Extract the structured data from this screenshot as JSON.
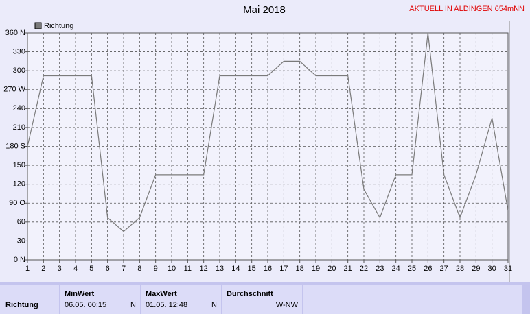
{
  "header": {
    "status": "AKTUELL IN ALDINGEN 654mNN"
  },
  "chart_data": {
    "type": "line",
    "title": "Mai 2018",
    "x": [
      1,
      2,
      3,
      4,
      5,
      6,
      7,
      8,
      9,
      10,
      11,
      12,
      13,
      14,
      15,
      16,
      17,
      18,
      19,
      20,
      21,
      22,
      23,
      24,
      25,
      26,
      27,
      28,
      29,
      30,
      31
    ],
    "series": [
      {
        "name": "Richtung",
        "color": "#7a7a7a",
        "values": [
          180,
          292,
          292,
          292,
          292,
          67,
          45,
          67,
          135,
          135,
          135,
          135,
          292,
          292,
          292,
          292,
          315,
          315,
          292,
          292,
          292,
          112,
          67,
          135,
          135,
          360,
          135,
          67,
          135,
          225,
          78
        ]
      }
    ],
    "xlim": [
      1,
      31
    ],
    "xticks": [
      1,
      2,
      3,
      4,
      5,
      6,
      7,
      8,
      9,
      10,
      11,
      12,
      13,
      14,
      15,
      16,
      17,
      18,
      19,
      20,
      21,
      22,
      23,
      24,
      25,
      26,
      27,
      28,
      29,
      30,
      31
    ],
    "ylim": [
      0,
      360
    ],
    "yticks": [
      {
        "value": 0,
        "label": "0 N"
      },
      30,
      60,
      {
        "value": 90,
        "label": "90 O"
      },
      120,
      150,
      {
        "value": 180,
        "label": "180 S"
      },
      210,
      240,
      {
        "value": 270,
        "label": "270 W"
      },
      300,
      330,
      {
        "value": 360,
        "label": "360 N"
      }
    ],
    "grid": true,
    "legend": "top-left"
  },
  "summary": {
    "label": "Richtung",
    "columns": [
      {
        "heading": "MinWert",
        "date": "06.05.  00:15",
        "dir": "N"
      },
      {
        "heading": "MaxWert",
        "date": "01.05.  12:48",
        "dir": "N"
      },
      {
        "heading": "Durchschnitt",
        "value": "W-NW"
      }
    ]
  }
}
